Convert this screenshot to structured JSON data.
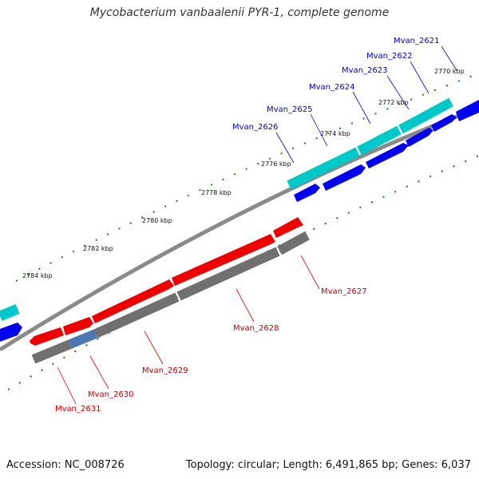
{
  "title": "Mycobacterium vanbaalenii PYR-1, complete genome",
  "footer": {
    "accession": "Accession: NC_008726",
    "topology": "Topology: circular; Length: 6,491,865 bp; Genes: 6,037"
  },
  "colors": {
    "forward_gene": "#0000ee",
    "forward_cds": "#00c8c8",
    "forward_rna": "#ff8c00",
    "reverse_gene": "#ee0000",
    "reverse_cds": "#707070",
    "reverse_overlap": "#4a78b0",
    "backbone": "#8a8a8a",
    "tick": "#1a7a1a",
    "forward_label": "#0000cc",
    "reverse_label": "#cc0000"
  },
  "scale_labels": [
    "2770 kbp",
    "2772 kbp",
    "2774 kbp",
    "2776 kbp",
    "2778 kbp",
    "2780 kbp",
    "2782 kbp",
    "2784 kbp"
  ],
  "forward_genes": [
    "Mvan_2621",
    "Mvan_2622",
    "Mvan_2623",
    "Mvan_2624",
    "Mvan_2625",
    "Mvan_2626"
  ],
  "reverse_genes": [
    "Mvan_2627",
    "Mvan_2628",
    "Mvan_2629",
    "Mvan_2630",
    "Mvan_2631"
  ]
}
